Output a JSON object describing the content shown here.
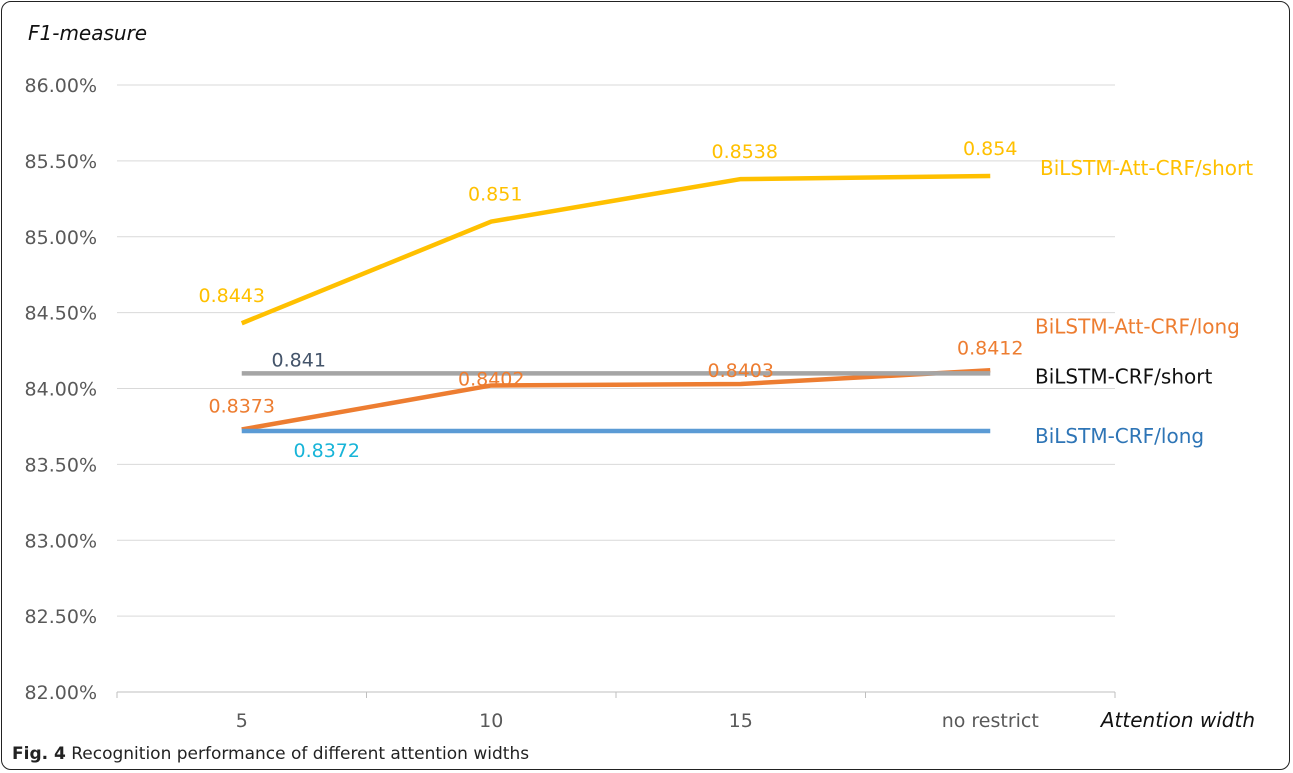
{
  "chart_data": {
    "type": "line",
    "ylabel": "F1-measure",
    "xlabel": "Attention width",
    "categories": [
      "5",
      "10",
      "15",
      "no restrict"
    ],
    "ylim": [
      0.82,
      0.86
    ],
    "yticks": [
      0.82,
      0.825,
      0.83,
      0.835,
      0.84,
      0.845,
      0.85,
      0.855,
      0.86
    ],
    "ytick_labels": [
      "82.00%",
      "82.50%",
      "83.00%",
      "83.50%",
      "84.00%",
      "84.50%",
      "85.00%",
      "85.50%",
      "86.00%"
    ],
    "grid": true,
    "legend": "right of line ends",
    "series": [
      {
        "name": "BiLSTM-Att-CRF/short",
        "values": [
          0.8443,
          0.851,
          0.8538,
          0.854
        ],
        "labels": [
          "0.8443",
          "0.851",
          "0.8538",
          "0.854"
        ],
        "color": "#FFC000",
        "label_color": "#FFC000",
        "name_color": "#FFC000"
      },
      {
        "name": "BiLSTM-Att-CRF/long",
        "values": [
          0.8373,
          0.8402,
          0.8403,
          0.8412
        ],
        "labels": [
          "0.8373",
          "0.8402",
          "0.8403",
          "0.8412"
        ],
        "color": "#ED7D31",
        "label_color": "#ED7D31",
        "name_color": "#ED7D31"
      },
      {
        "name": "BiLSTM-CRF/short",
        "values": [
          0.841,
          0.841,
          0.841,
          0.841
        ],
        "labels": [
          "0.841"
        ],
        "color": "#A5A5A5",
        "label_color": "#44546A",
        "name_color": "#111111"
      },
      {
        "name": "BiLSTM-CRF/long",
        "values": [
          0.8372,
          0.8372,
          0.8372,
          0.8372
        ],
        "labels": [
          "0.8372"
        ],
        "color": "#5B9BD5",
        "label_color": "#17B4D8",
        "name_color": "#2E75B6"
      }
    ]
  },
  "caption": {
    "prefix": "Fig. 4",
    "text": " Recognition performance of different attention widths"
  }
}
